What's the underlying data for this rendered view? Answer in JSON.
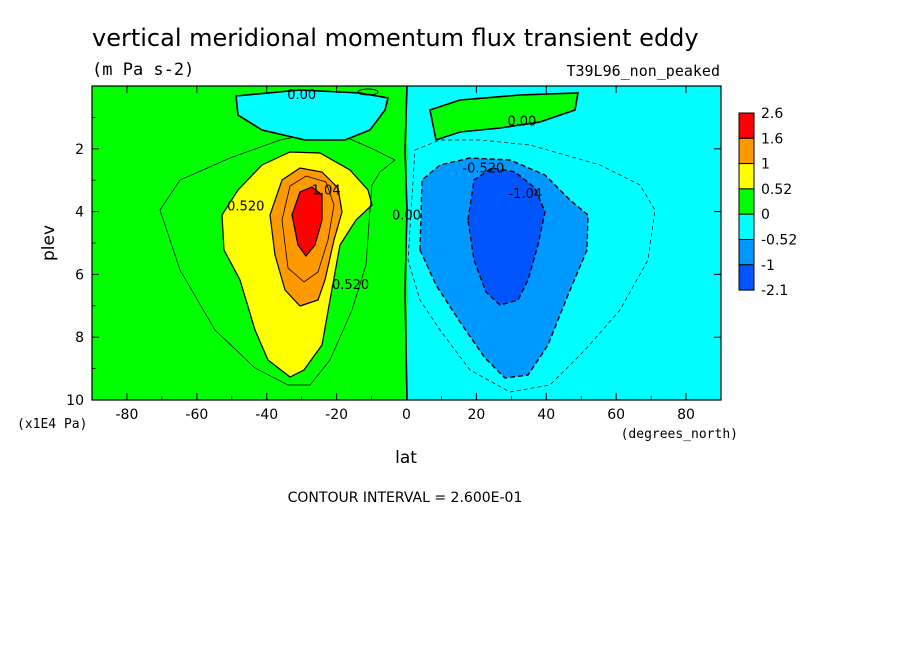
{
  "chart_data": {
    "type": "heatmap",
    "title": "vertical meridional momentum flux transient eddy",
    "units": "(m Pa s-2)",
    "run_label": "T39L96_non_peaked",
    "xlabel": "lat",
    "xunits": "(degrees_north)",
    "ylabel": "plev",
    "yunits": "(x1E4 Pa)",
    "xlim": [
      -90,
      90
    ],
    "ylim": [
      10,
      0
    ],
    "xticks": [
      -80,
      -60,
      -40,
      -20,
      0,
      20,
      40,
      60,
      80
    ],
    "yticks": [
      2,
      4,
      6,
      8,
      10
    ],
    "footer": "CONTOUR INTERVAL = 2.600E-01",
    "colorbar": {
      "levels": [
        "2.6",
        "1.6",
        "1",
        "0.52",
        "0",
        "-0.52",
        "-1",
        "-2.1"
      ],
      "colors": [
        "#ff0000",
        "#ff9900",
        "#ffff00",
        "#00ff00",
        "#00ffff",
        "#0099ff",
        "#0055ff"
      ]
    },
    "contour_labels": [
      {
        "text": "0.00",
        "lat": -30,
        "plev": 0.25
      },
      {
        "text": "0.00",
        "lat": 33,
        "plev": 1.1
      },
      {
        "text": "0.520",
        "lat": -46,
        "plev": 3.8
      },
      {
        "text": "1.04",
        "lat": -23,
        "plev": 3.3
      },
      {
        "text": "0.520",
        "lat": -16,
        "plev": 6.3
      },
      {
        "text": "0.00",
        "lat": 0,
        "plev": 4.1
      },
      {
        "text": "-0.520",
        "lat": 22,
        "plev": 2.6
      },
      {
        "text": "-1.04",
        "lat": 34,
        "plev": 3.4
      }
    ],
    "fields": {
      "south_positive_max": {
        "lat": -30,
        "plev": 4.0,
        "value": 2.6
      },
      "north_negative_min": {
        "lat": 30,
        "plev": 4.5,
        "value": -2.1
      }
    }
  }
}
